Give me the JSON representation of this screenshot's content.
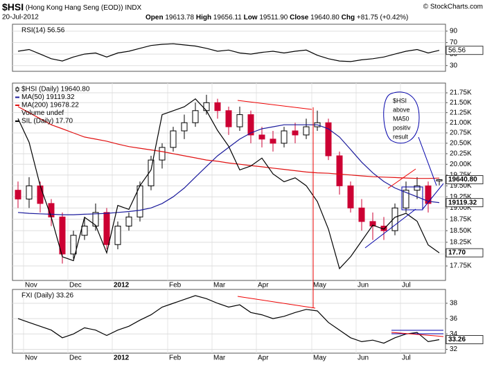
{
  "header": {
    "symbol": "$HSI",
    "name": "(Hong Kong Hang Seng (EOD))",
    "exchange": "INDX",
    "date": "20-Jul-2012",
    "copyright": "© StockCharts.com",
    "quote": [
      [
        "Open",
        "19613.78"
      ],
      [
        "High",
        "19656.11"
      ],
      [
        "Low",
        "19511.90"
      ],
      [
        "Close",
        "19640.80"
      ],
      [
        "Chg",
        "+81.75 (+0.42%)"
      ]
    ]
  },
  "annotation": [
    "$HSI",
    "above",
    "MA50",
    "positiv",
    "result"
  ],
  "chart_data": [
    {
      "type": "line",
      "ylim": [
        20,
        102
      ],
      "yticks": [
        90,
        70,
        50,
        30
      ],
      "grid": true,
      "legend": "upper left",
      "series": [
        {
          "name": "RSI(14) 56.56",
          "color": "#000000",
          "last_label": "56.56",
          "values": [
            55,
            58,
            50,
            42,
            38,
            45,
            50,
            52,
            45,
            52,
            55,
            60,
            65,
            67,
            68,
            66,
            64,
            60,
            55,
            57,
            52,
            50,
            53,
            55,
            52,
            55,
            57,
            48,
            42,
            38,
            37,
            40,
            42,
            45,
            50,
            55,
            58,
            52,
            56.56
          ]
        }
      ]
    },
    {
      "type": "candlestick",
      "log_scale": true,
      "grid": true,
      "legend": "upper left",
      "categories": [
        null,
        "Nov",
        null,
        null,
        null,
        "Dec",
        null,
        null,
        null,
        "2012",
        null,
        null,
        null,
        null,
        "Feb",
        null,
        null,
        null,
        "Mar",
        null,
        null,
        null,
        "Apr",
        null,
        null,
        null,
        null,
        "May",
        null,
        null,
        null,
        "Jun",
        null,
        null,
        null,
        "Jul",
        null,
        null,
        null
      ],
      "ylim": [
        17450,
        22000
      ],
      "yticks": [
        {
          "value": 21750,
          "label": "21.75K"
        },
        {
          "value": 21500,
          "label": "21.50K"
        },
        {
          "value": 21250,
          "label": "21.25K"
        },
        {
          "value": 21000,
          "label": "21.00K"
        },
        {
          "value": 20750,
          "label": "20.75K"
        },
        {
          "value": 20500,
          "label": "20.50K"
        },
        {
          "value": 20250,
          "label": "20.25K"
        },
        {
          "value": 20000,
          "label": "20.00K"
        },
        {
          "value": 19750,
          "label": "19.75K"
        },
        {
          "value": 19500,
          "label": "19.50K"
        },
        {
          "value": 19250,
          "label": "19.25K"
        },
        {
          "value": 19000,
          "label": "19.00K"
        },
        {
          "value": 18750,
          "label": "18.75K"
        },
        {
          "value": 18500,
          "label": "18.50K"
        },
        {
          "value": 18250,
          "label": "18.25K"
        },
        {
          "value": 18000,
          "label": "18.00K"
        },
        {
          "value": 17750,
          "label": "17.75K"
        }
      ],
      "y2lim": [
        17.0,
        22.0
      ],
      "price": {
        "name": "$HSI (Daily) 19640.80",
        "color": "#000000",
        "down_color": "#cc0033",
        "last_label": "19640.80",
        "open": [
          19400,
          19200,
          19500,
          19100,
          18800,
          18000,
          18400,
          18600,
          18900,
          18200,
          18600,
          18800,
          19500,
          20100,
          20400,
          20800,
          21000,
          21300,
          21500,
          21300,
          20900,
          21200,
          20700,
          20600,
          20500,
          20800,
          20700,
          20900,
          21000,
          20200,
          19500,
          19000,
          18700,
          18600,
          18500,
          19000,
          19400,
          19500,
          19613.78
        ],
        "high": [
          19600,
          19700,
          19600,
          19200,
          18900,
          18500,
          18800,
          19100,
          19000,
          18700,
          18900,
          19600,
          20200,
          20500,
          20900,
          21200,
          21500,
          21700,
          21600,
          21400,
          21400,
          21300,
          20900,
          20800,
          20900,
          21000,
          21100,
          21300,
          21100,
          20300,
          19600,
          19200,
          18900,
          18800,
          19100,
          19600,
          19700,
          19600,
          19656.11
        ],
        "low": [
          19000,
          19000,
          18900,
          18600,
          17800,
          17900,
          18300,
          18500,
          18100,
          18100,
          18500,
          18700,
          19400,
          19900,
          20300,
          20600,
          20900,
          21200,
          21100,
          20700,
          20800,
          20500,
          20400,
          20300,
          20400,
          20500,
          20600,
          20800,
          20100,
          19300,
          18900,
          18500,
          18300,
          18300,
          18400,
          18900,
          19200,
          18900,
          19511.9
        ],
        "close": [
          19200,
          19500,
          19100,
          18800,
          18000,
          18400,
          18600,
          18900,
          18200,
          18600,
          18800,
          19500,
          20100,
          20400,
          20800,
          21000,
          21300,
          21500,
          21300,
          20900,
          21200,
          20700,
          20600,
          20500,
          20800,
          20700,
          20900,
          21000,
          20200,
          19500,
          19000,
          18700,
          18600,
          18500,
          19000,
          19400,
          19500,
          19100,
          19640.8
        ]
      },
      "series": [
        {
          "name": "MA(50) 19119.32",
          "color": "#1a1a9c",
          "last_label": "19119.32",
          "values": [
            18900,
            18880,
            18870,
            18860,
            18850,
            18850,
            18860,
            18870,
            18880,
            18900,
            18920,
            18950,
            19000,
            19100,
            19250,
            19450,
            19700,
            19950,
            20200,
            20400,
            20600,
            20750,
            20850,
            20900,
            20950,
            20950,
            20950,
            20950,
            20850,
            20650,
            20350,
            20050,
            19800,
            19600,
            19450,
            19350,
            19250,
            19150,
            19119.32
          ]
        },
        {
          "name": "MA(200) 19678.22",
          "color": "#e01010",
          "values": [
            21400,
            21250,
            21100,
            20950,
            20850,
            20750,
            20650,
            20600,
            20550,
            20480,
            20420,
            20380,
            20340,
            20300,
            20250,
            20200,
            20150,
            20100,
            20070,
            20030,
            20000,
            19970,
            19940,
            19910,
            19880,
            19850,
            19820,
            19800,
            19790,
            19770,
            19750,
            19730,
            19710,
            19700,
            19690,
            19680,
            19670,
            19670,
            19678.22
          ]
        },
        {
          "name": "Volume undef",
          "color": "#000000",
          "values": null
        },
        {
          "name": "SIL (Daily) 17.70",
          "color": "#000000",
          "axis": "y2",
          "last_label": "17.70",
          "values": [
            21.1,
            20.5,
            19.4,
            18.6,
            17.6,
            17.5,
            18.6,
            18.4,
            17.7,
            18.9,
            18.8,
            19.4,
            19.8,
            21.2,
            21.3,
            21.4,
            21.6,
            21.3,
            20.8,
            20.4,
            19.8,
            19.9,
            20.1,
            19.7,
            19.5,
            19.6,
            19.4,
            19.0,
            18.3,
            17.3,
            17.6,
            18.0,
            18.4,
            18.3,
            18.6,
            18.7,
            18.5,
            17.9,
            17.7
          ]
        }
      ]
    },
    {
      "type": "line",
      "grid": true,
      "legend": "upper left",
      "categories": [
        null,
        "Nov",
        null,
        null,
        null,
        "Dec",
        null,
        null,
        null,
        "2012",
        null,
        null,
        null,
        null,
        "Feb",
        null,
        null,
        null,
        "Mar",
        null,
        null,
        null,
        "Apr",
        null,
        null,
        null,
        null,
        "May",
        null,
        null,
        null,
        "Jun",
        null,
        null,
        null,
        "Jul",
        null,
        null,
        null
      ],
      "ylim": [
        31.5,
        39.8
      ],
      "yticks": [
        38,
        36,
        34,
        32
      ],
      "series": [
        {
          "name": "FXI (Daily) 33.26",
          "color": "#000000",
          "last_label": "33.26",
          "values": [
            36.0,
            35.5,
            35.0,
            34.5,
            33.5,
            34.0,
            34.8,
            34.5,
            33.8,
            34.5,
            35.0,
            35.8,
            36.5,
            37.5,
            38.0,
            38.5,
            39.0,
            38.6,
            38.0,
            37.5,
            37.8,
            36.8,
            36.5,
            36.0,
            36.3,
            36.8,
            37.2,
            37.0,
            35.5,
            34.5,
            33.5,
            33.0,
            33.2,
            32.8,
            33.5,
            34.0,
            34.2,
            33.0,
            33.26
          ]
        }
      ]
    }
  ]
}
